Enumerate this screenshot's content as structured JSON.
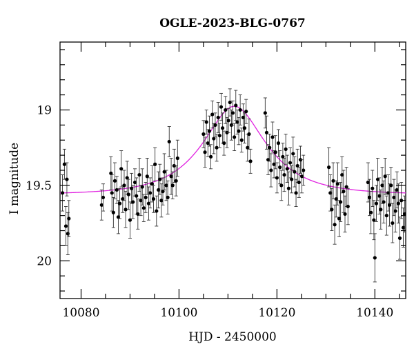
{
  "chart_data": {
    "type": "scatter",
    "title": "OGLE-2023-BLG-0767",
    "xlabel": "HJD - 2450000",
    "ylabel": "I magnitude",
    "xlim": [
      10075.7,
      10146.3
    ],
    "ylim": [
      20.25,
      18.55
    ],
    "y_inverted": true,
    "xticks": [
      10080,
      10100,
      10120,
      10140
    ],
    "yticks": [
      19,
      19.5,
      20
    ],
    "grid": false,
    "colors": {
      "points": "#000000",
      "errorbars": "#333333",
      "model": "#e020e0",
      "frame": "#000000"
    },
    "model_curve": {
      "type": "paczynski",
      "t0": 10111.3,
      "u0": 0.55,
      "tE": 11.0,
      "baseline_mag": 19.56,
      "blending_fraction": 0.7
    },
    "series": [
      {
        "points": [
          [
            10076.2,
            19.55,
            0.12
          ],
          [
            10076.6,
            19.36,
            0.1
          ],
          [
            10076.9,
            19.77,
            0.13
          ],
          [
            10077.1,
            19.46,
            0.11
          ],
          [
            10077.3,
            19.82,
            0.14
          ],
          [
            10077.5,
            19.72,
            0.12
          ],
          [
            10084.2,
            19.63,
            0.1
          ],
          [
            10084.5,
            19.58,
            0.09
          ],
          [
            10086.1,
            19.42,
            0.11
          ],
          [
            10086.3,
            19.55,
            0.12
          ],
          [
            10086.6,
            19.68,
            0.1
          ],
          [
            10086.9,
            19.47,
            0.12
          ],
          [
            10087.3,
            19.53,
            0.09
          ],
          [
            10087.6,
            19.71,
            0.11
          ],
          [
            10087.9,
            19.62,
            0.1
          ],
          [
            10088.2,
            19.39,
            0.12
          ],
          [
            10088.5,
            19.59,
            0.09
          ],
          [
            10088.8,
            19.5,
            0.1
          ],
          [
            10089.1,
            19.66,
            0.12
          ],
          [
            10089.4,
            19.45,
            0.11
          ],
          [
            10089.7,
            19.56,
            0.1
          ],
          [
            10090.0,
            19.73,
            0.12
          ],
          [
            10090.3,
            19.52,
            0.1
          ],
          [
            10090.6,
            19.61,
            0.11
          ],
          [
            10091.0,
            19.48,
            0.09
          ],
          [
            10091.3,
            19.57,
            0.12
          ],
          [
            10091.6,
            19.69,
            0.1
          ],
          [
            10091.9,
            19.43,
            0.11
          ],
          [
            10092.2,
            19.6,
            0.1
          ],
          [
            10092.5,
            19.51,
            0.12
          ],
          [
            10092.8,
            19.65,
            0.09
          ],
          [
            10093.2,
            19.58,
            0.1
          ],
          [
            10093.5,
            19.44,
            0.12
          ],
          [
            10093.8,
            19.62,
            0.11
          ],
          [
            10094.1,
            19.55,
            0.1
          ],
          [
            10094.5,
            19.49,
            0.12
          ],
          [
            10094.8,
            19.59,
            0.09
          ],
          [
            10095.1,
            19.36,
            0.11
          ],
          [
            10095.4,
            19.67,
            0.1
          ],
          [
            10095.8,
            19.53,
            0.12
          ],
          [
            10096.1,
            19.46,
            0.1
          ],
          [
            10096.4,
            19.6,
            0.11
          ],
          [
            10096.7,
            19.54,
            0.09
          ],
          [
            10097.0,
            19.41,
            0.12
          ],
          [
            10097.4,
            19.5,
            0.1
          ],
          [
            10097.7,
            19.58,
            0.11
          ],
          [
            10098.0,
            19.21,
            0.1
          ],
          [
            10098.4,
            19.44,
            0.12
          ],
          [
            10098.7,
            19.5,
            0.09
          ],
          [
            10099.0,
            19.37,
            0.11
          ],
          [
            10099.4,
            19.47,
            0.1
          ],
          [
            10099.7,
            19.32,
            0.12
          ],
          [
            10105.0,
            19.16,
            0.09
          ],
          [
            10105.3,
            19.28,
            0.1
          ],
          [
            10105.6,
            19.08,
            0.08
          ],
          [
            10105.9,
            19.22,
            0.09
          ],
          [
            10106.2,
            19.14,
            0.1
          ],
          [
            10106.5,
            19.31,
            0.08
          ],
          [
            10106.8,
            19.03,
            0.09
          ],
          [
            10107.1,
            19.19,
            0.1
          ],
          [
            10107.4,
            19.1,
            0.08
          ],
          [
            10107.7,
            19.25,
            0.09
          ],
          [
            10108.0,
            19.05,
            0.1
          ],
          [
            10108.3,
            19.17,
            0.08
          ],
          [
            10108.6,
            18.98,
            0.09
          ],
          [
            10108.9,
            19.12,
            0.1
          ],
          [
            10109.2,
            19.22,
            0.08
          ],
          [
            10109.5,
            19.0,
            0.09
          ],
          [
            10109.8,
            19.15,
            0.1
          ],
          [
            10110.1,
            19.07,
            0.08
          ],
          [
            10110.4,
            18.95,
            0.09
          ],
          [
            10110.7,
            19.1,
            0.1
          ],
          [
            10111.0,
            19.02,
            0.08
          ],
          [
            10111.3,
            19.18,
            0.09
          ],
          [
            10111.6,
            18.97,
            0.1
          ],
          [
            10111.9,
            19.08,
            0.08
          ],
          [
            10112.2,
            19.14,
            0.09
          ],
          [
            10112.5,
            19.0,
            0.1
          ],
          [
            10112.8,
            19.2,
            0.08
          ],
          [
            10113.1,
            19.05,
            0.09
          ],
          [
            10113.4,
            19.12,
            0.1
          ],
          [
            10113.7,
            19.01,
            0.08
          ],
          [
            10114.0,
            19.25,
            0.09
          ],
          [
            10114.3,
            19.16,
            0.1
          ],
          [
            10114.6,
            19.34,
            0.08
          ],
          [
            10117.6,
            19.02,
            0.1
          ],
          [
            10117.9,
            19.15,
            0.11
          ],
          [
            10118.2,
            19.33,
            0.1
          ],
          [
            10118.5,
            19.25,
            0.09
          ],
          [
            10118.8,
            19.4,
            0.11
          ],
          [
            10119.1,
            19.18,
            0.1
          ],
          [
            10119.4,
            19.36,
            0.09
          ],
          [
            10119.7,
            19.28,
            0.11
          ],
          [
            10120.0,
            19.45,
            0.1
          ],
          [
            10120.3,
            19.22,
            0.09
          ],
          [
            10120.6,
            19.38,
            0.11
          ],
          [
            10120.9,
            19.5,
            0.1
          ],
          [
            10121.2,
            19.31,
            0.09
          ],
          [
            10121.5,
            19.43,
            0.11
          ],
          [
            10121.8,
            19.26,
            0.1
          ],
          [
            10122.1,
            19.39,
            0.09
          ],
          [
            10122.4,
            19.52,
            0.11
          ],
          [
            10122.7,
            19.35,
            0.1
          ],
          [
            10123.0,
            19.46,
            0.09
          ],
          [
            10123.3,
            19.29,
            0.11
          ],
          [
            10123.6,
            19.41,
            0.1
          ],
          [
            10123.9,
            19.55,
            0.09
          ],
          [
            10124.2,
            19.37,
            0.11
          ],
          [
            10124.5,
            19.48,
            0.1
          ],
          [
            10124.8,
            19.33,
            0.09
          ],
          [
            10125.1,
            19.44,
            0.11
          ],
          [
            10125.4,
            19.4,
            0.1
          ],
          [
            10130.6,
            19.38,
            0.13
          ],
          [
            10130.9,
            19.55,
            0.12
          ],
          [
            10131.2,
            19.66,
            0.14
          ],
          [
            10131.5,
            19.47,
            0.12
          ],
          [
            10131.8,
            19.76,
            0.13
          ],
          [
            10132.1,
            19.59,
            0.12
          ],
          [
            10132.4,
            19.49,
            0.14
          ],
          [
            10132.7,
            19.72,
            0.12
          ],
          [
            10133.0,
            19.61,
            0.13
          ],
          [
            10133.3,
            19.43,
            0.12
          ],
          [
            10133.6,
            19.54,
            0.14
          ],
          [
            10133.9,
            19.69,
            0.12
          ],
          [
            10134.2,
            19.51,
            0.13
          ],
          [
            10134.5,
            19.64,
            0.12
          ],
          [
            10138.6,
            19.48,
            0.13
          ],
          [
            10138.9,
            19.58,
            0.12
          ],
          [
            10139.2,
            19.68,
            0.14
          ],
          [
            10139.5,
            19.52,
            0.12
          ],
          [
            10139.8,
            19.73,
            0.13
          ],
          [
            10140.0,
            19.98,
            0.16
          ],
          [
            10140.3,
            19.62,
            0.12
          ],
          [
            10140.6,
            19.46,
            0.14
          ],
          [
            10140.9,
            19.57,
            0.12
          ],
          [
            10141.2,
            19.66,
            0.13
          ],
          [
            10141.5,
            19.5,
            0.12
          ],
          [
            10141.8,
            19.61,
            0.14
          ],
          [
            10142.1,
            19.44,
            0.12
          ],
          [
            10142.4,
            19.7,
            0.13
          ],
          [
            10142.7,
            19.55,
            0.12
          ],
          [
            10143.0,
            19.63,
            0.14
          ],
          [
            10143.3,
            19.5,
            0.12
          ],
          [
            10143.6,
            19.75,
            0.13
          ],
          [
            10143.9,
            19.58,
            0.12
          ],
          [
            10144.2,
            19.67,
            0.14
          ],
          [
            10144.5,
            19.53,
            0.12
          ],
          [
            10144.8,
            19.62,
            0.13
          ],
          [
            10145.1,
            19.85,
            0.14
          ],
          [
            10145.4,
            19.6,
            0.12
          ],
          [
            10145.8,
            19.78,
            0.13
          ],
          [
            10146.1,
            19.69,
            0.12
          ]
        ]
      }
    ]
  }
}
